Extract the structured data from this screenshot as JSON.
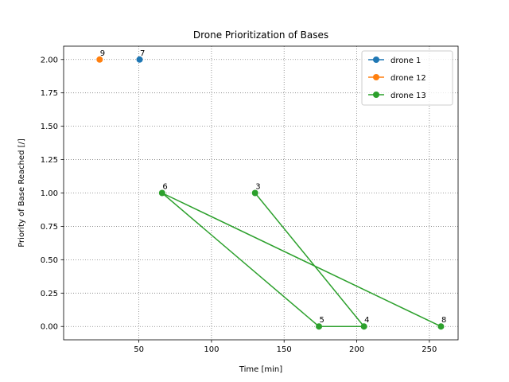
{
  "chart_data": {
    "type": "line",
    "title": "Drone Prioritization of Bases",
    "xlabel": "Time [min]",
    "ylabel": "Priority of Base Reached [/]",
    "xlim": [
      -1.8,
      269.8
    ],
    "ylim": [
      -0.1,
      2.1
    ],
    "xticks": [
      50,
      100,
      150,
      200,
      250
    ],
    "xtick_labels": [
      "50",
      "100",
      "150",
      "200",
      "250"
    ],
    "yticks": [
      0,
      0.25,
      0.5,
      0.75,
      1.0,
      1.25,
      1.5,
      1.75,
      2.0
    ],
    "ytick_labels": [
      "0.00",
      "0.25",
      "0.50",
      "0.75",
      "1.00",
      "1.25",
      "1.50",
      "1.75",
      "2.00"
    ],
    "grid": true,
    "legend_position": "top-right",
    "series": [
      {
        "name": "drone 1",
        "color": "#1f77b4",
        "points": [
          {
            "x": 50.5,
            "y": 2.0,
            "label": "7"
          }
        ]
      },
      {
        "name": "drone 12",
        "color": "#ff7f0e",
        "points": [
          {
            "x": 23,
            "y": 2.0,
            "label": "9"
          }
        ]
      },
      {
        "name": "drone 13",
        "color": "#2ca02c",
        "points": [
          {
            "x": 130,
            "y": 1.0,
            "label": "3"
          },
          {
            "x": 205,
            "y": 0.0,
            "label": "4"
          },
          {
            "x": 174,
            "y": 0.0,
            "label": "5"
          },
          {
            "x": 66,
            "y": 1.0,
            "label": "6"
          },
          {
            "x": 258,
            "y": 0.0,
            "label": "8"
          }
        ]
      }
    ]
  }
}
